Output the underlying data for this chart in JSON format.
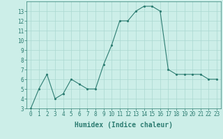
{
  "xlabel": "Humidex (Indice chaleur)",
  "x_values": [
    0,
    1,
    2,
    3,
    4,
    5,
    6,
    7,
    8,
    9,
    10,
    11,
    12,
    13,
    14,
    15,
    16,
    17,
    18,
    19,
    20,
    21,
    22,
    23
  ],
  "y_values": [
    3.0,
    5.0,
    6.5,
    4.0,
    4.5,
    6.0,
    5.5,
    5.0,
    5.0,
    7.5,
    9.5,
    12.0,
    12.0,
    13.0,
    13.5,
    13.5,
    13.0,
    7.0,
    6.5,
    6.5,
    6.5,
    6.5,
    6.0,
    6.0
  ],
  "ylim": [
    3,
    14
  ],
  "xlim": [
    -0.5,
    23.5
  ],
  "yticks": [
    3,
    4,
    5,
    6,
    7,
    8,
    9,
    10,
    11,
    12,
    13
  ],
  "xticks": [
    0,
    1,
    2,
    3,
    4,
    5,
    6,
    7,
    8,
    9,
    10,
    11,
    12,
    13,
    14,
    15,
    16,
    17,
    18,
    19,
    20,
    21,
    22,
    23
  ],
  "line_color": "#2d7d72",
  "marker_color": "#2d7d72",
  "bg_color": "#cceee8",
  "grid_color": "#aad8d0",
  "axis_label_color": "#2d7d72",
  "tick_label_color": "#2d7d72",
  "tick_fontsize": 5.5,
  "xlabel_fontsize": 7.0
}
